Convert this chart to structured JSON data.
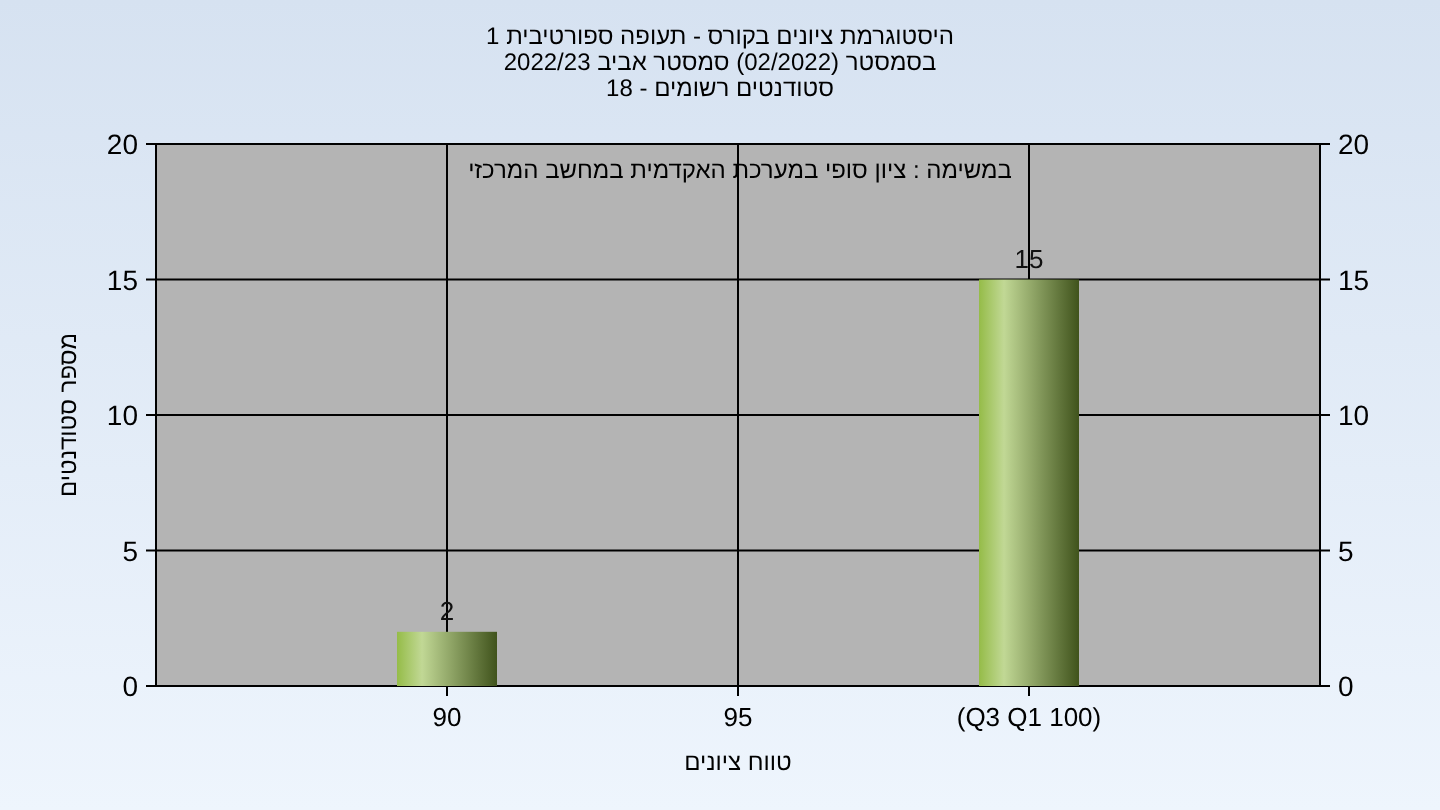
{
  "chart_data": {
    "type": "bar",
    "title": "היסטוגרמת ציונים בקורס - תעופה ספורטיבית 1",
    "subtitle": "בסמסטר  (02/2022)  סמסטר אביב 2022/23\nסטודנטים רשומים - 18",
    "annotations": [
      "במשימה : ציון סופי במערכת האקדמית במחשב המרכזי"
    ],
    "xlabel": "טווח ציונים",
    "ylabel": "מספר סטודנטים",
    "categories": [
      "90",
      "95",
      "(Q3 Q1 100)"
    ],
    "values": [
      2,
      0,
      15
    ],
    "value_labels": [
      "2",
      null,
      "15"
    ],
    "color": "#8fb83e",
    "ylim": [
      0,
      20
    ],
    "yticks": [
      0,
      5,
      10,
      15,
      20
    ],
    "y2lim": [
      0,
      20
    ],
    "y2ticks": [
      0,
      5,
      10,
      15,
      20
    ],
    "grid": true
  }
}
